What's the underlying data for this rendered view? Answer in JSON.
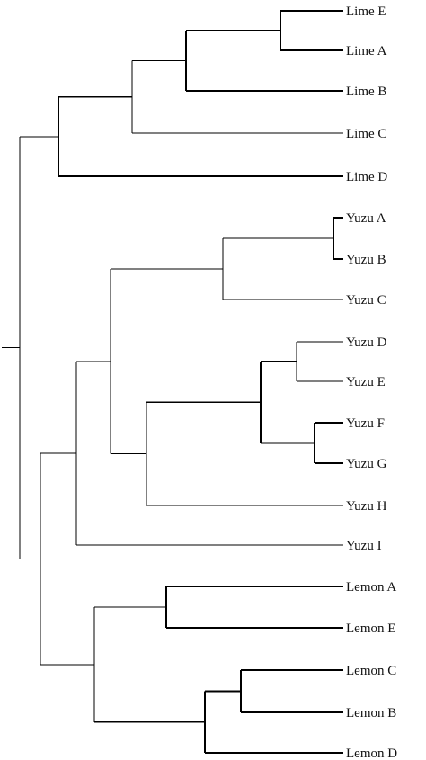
{
  "chart_data": {
    "type": "dendrogram",
    "orientation": "left-to-right",
    "leaves": [
      "Lime E",
      "Lime A",
      "Lime B",
      "Lime C",
      "Lime D",
      "Yuzu A",
      "Yuzu B",
      "Yuzu C",
      "Yuzu D",
      "Yuzu E",
      "Yuzu F",
      "Yuzu G",
      "Yuzu H",
      "Yuzu I",
      "Lemon A",
      "Lemon E",
      "Lemon C",
      "Lemon B",
      "Lemon D"
    ],
    "topology": [
      [
        [
          [
            [
              [
                "Lime E",
                "Lime A"
              ],
              "Lime B"
            ],
            "Lime C"
          ],
          "Lime D"
        ]
      ],
      [
        [
          [
            [
              [
                "Yuzu A",
                "Yuzu B"
              ],
              "Yuzu C"
            ],
            [
              [
                [
                  "Yuzu D",
                  "Yuzu E"
                ],
                [
                  "Yuzu F",
                  "Yuzu G"
                ]
              ],
              "Yuzu H"
            ]
          ],
          "Yuzu I"
        ],
        [
          [
            "Lemon A",
            "Lemon E"
          ],
          [
            [
              "Lemon C",
              "Lemon B"
            ],
            "Lemon D"
          ]
        ]
      ]
    ],
    "line_color": "#000000",
    "text_color": "#111111"
  }
}
